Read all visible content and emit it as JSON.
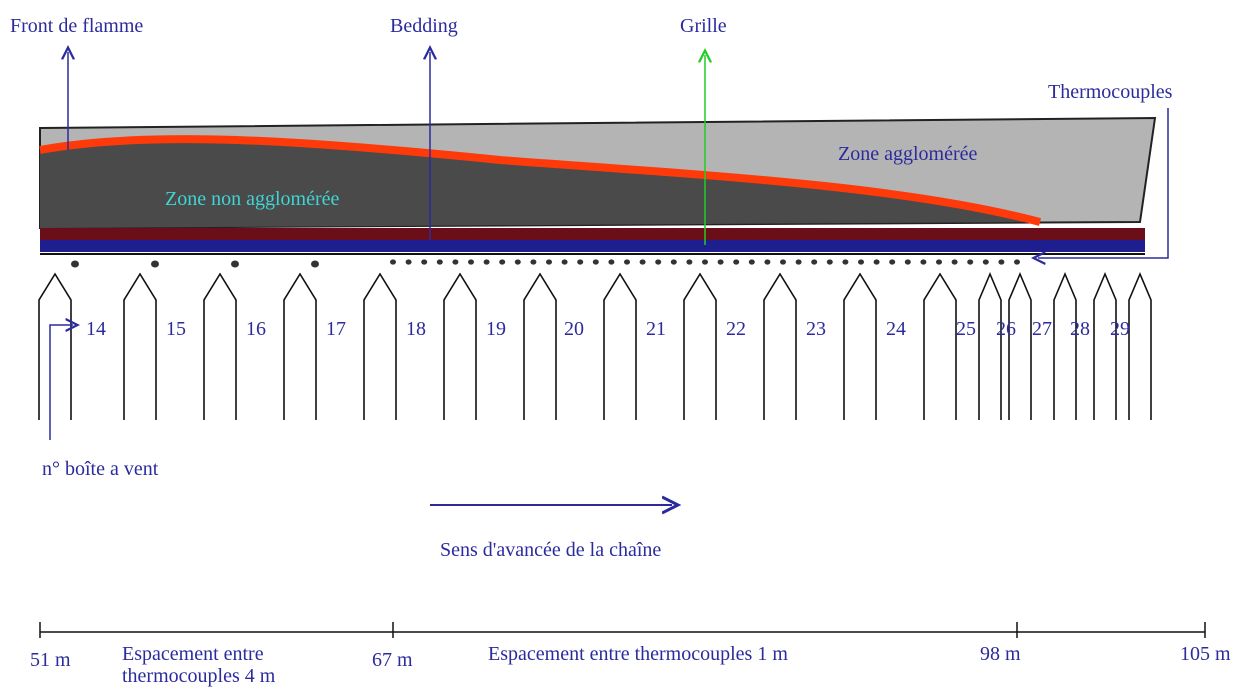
{
  "labels": {
    "flame_front": "Front de flamme",
    "bedding": "Bedding",
    "grate": "Grille",
    "thermocouples": "Thermocouples",
    "sintered_zone": "Zone agglomérée",
    "unsintered_zone": "Zone non agglomérée",
    "windbox_number": "n° boîte a vent",
    "direction": "Sens d'avancée de la chaîne"
  },
  "windboxes": [
    "14",
    "15",
    "16",
    "17",
    "18",
    "19",
    "20",
    "21",
    "22",
    "23",
    "24",
    "25",
    "26",
    "27",
    "28",
    "29"
  ],
  "scale": {
    "ticks": [
      "51 m",
      "67 m",
      "98 m",
      "105 m"
    ],
    "spacing_4m": [
      "Espacement entre",
      "thermocouples 4 m"
    ],
    "spacing_1m": "Espacement entre thermocouples 1 m"
  }
}
